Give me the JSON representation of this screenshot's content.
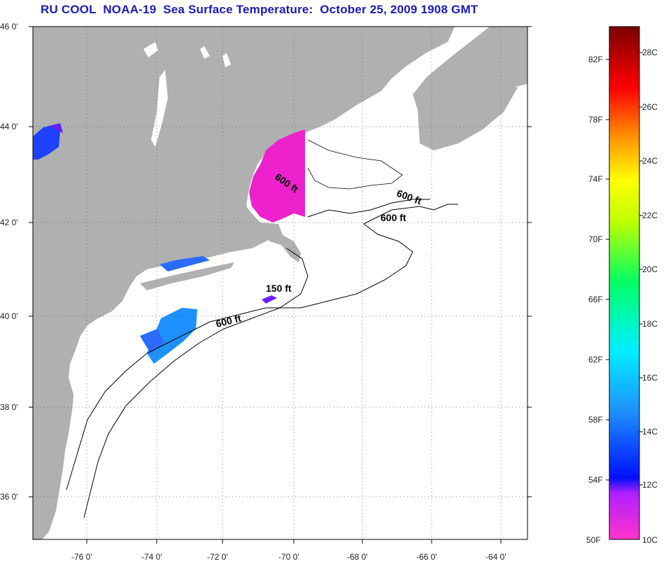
{
  "title": "RU COOL  NOAA-19  Sea Surface Temperature:  October 25, 2009 1908 GMT",
  "map": {
    "lat_range": [
      35,
      46
    ],
    "lon_range": [
      -77,
      -63
    ],
    "lat_ticks": [
      "46 0'",
      "44 0'",
      "42 0'",
      "40 0'",
      "38 0'",
      "36 0'"
    ],
    "lon_ticks": [
      "-76 0'",
      "-74 0'",
      "-72 0'",
      "-70 0'",
      "-68 0'",
      "-66 0'",
      "-64 0'"
    ],
    "land_color": "#b0b0b0",
    "water_color": "#ffffff",
    "contour_labels": [
      "600 ft",
      "600 ft",
      "600 ft",
      "150 ft",
      "600 ft"
    ]
  },
  "colorbar": {
    "fahrenheit_labels": [
      "82F",
      "78F",
      "74F",
      "70F",
      "66F",
      "62F",
      "58F",
      "54F",
      "50F"
    ],
    "celsius_labels": [
      "28C",
      "26C",
      "24C",
      "22C",
      "20C",
      "18C",
      "16C",
      "14C",
      "12C",
      "10C"
    ],
    "colors": [
      "#ff33cc",
      "#6b1fff",
      "#0010ff",
      "#00e0ff",
      "#00ff60",
      "#ffff00",
      "#ff8c00",
      "#ff0000",
      "#7a0000"
    ]
  }
}
